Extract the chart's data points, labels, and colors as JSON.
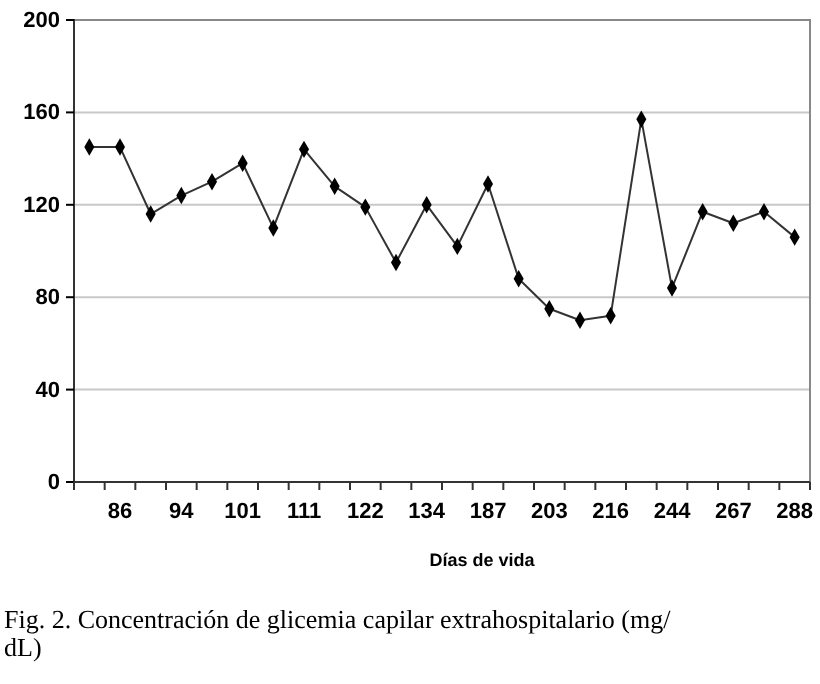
{
  "chart_data": {
    "type": "line",
    "xlabel": "Días de vida",
    "annotations": [
      "Fig. 2. Concentración de glicemia capilar extrahospitalario (mg/dL)"
    ],
    "categories": [
      null,
      "86",
      null,
      "94",
      null,
      "101",
      null,
      "111",
      null,
      "122",
      null,
      "134",
      null,
      "187",
      null,
      "203",
      null,
      "216",
      null,
      "244",
      null,
      "267",
      null,
      "288"
    ],
    "series": [
      {
        "color": "#333333",
        "values": [
          145,
          145,
          116,
          124,
          130,
          138,
          110,
          144,
          128,
          119,
          95,
          120,
          102,
          129,
          88,
          75,
          70,
          72,
          157,
          84,
          117,
          112,
          117,
          106
        ]
      }
    ],
    "ylim": [
      0,
      200
    ],
    "yticks": [
      0,
      40,
      80,
      120,
      160,
      200
    ],
    "grid": "y",
    "marker": "diamond",
    "line_style": "solid"
  }
}
